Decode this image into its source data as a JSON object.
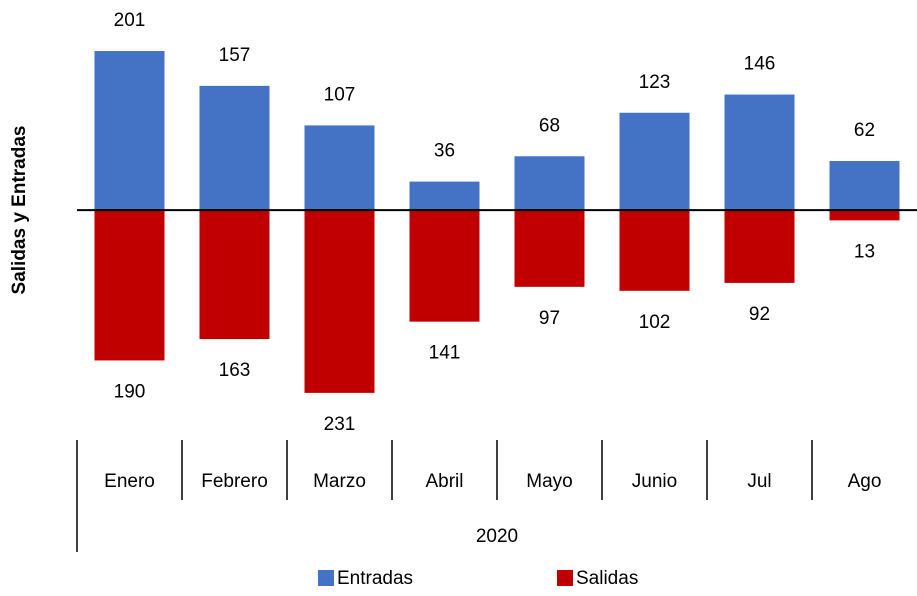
{
  "chart_data": {
    "type": "bar",
    "ylabel": "Salidas  y  Entradas",
    "categories": [
      "Enero",
      "Febrero",
      "Marzo",
      "Abril",
      "Mayo",
      "Junio",
      "Jul",
      "Ago"
    ],
    "x_group": "2020",
    "series": [
      {
        "name": "Entradas",
        "color": "#4472c4",
        "values": [
          201,
          157,
          107,
          36,
          68,
          123,
          146,
          62
        ]
      },
      {
        "name": "Salidas",
        "color": "#c00000",
        "values": [
          -190,
          -163,
          -231,
          -141,
          -97,
          -102,
          -92,
          -13
        ],
        "value_labels": [
          "190",
          "163",
          "231",
          "141",
          "97",
          "102",
          "92",
          "13"
        ]
      }
    ],
    "ylim": [
      -240,
      220
    ],
    "legend": "bottom"
  }
}
